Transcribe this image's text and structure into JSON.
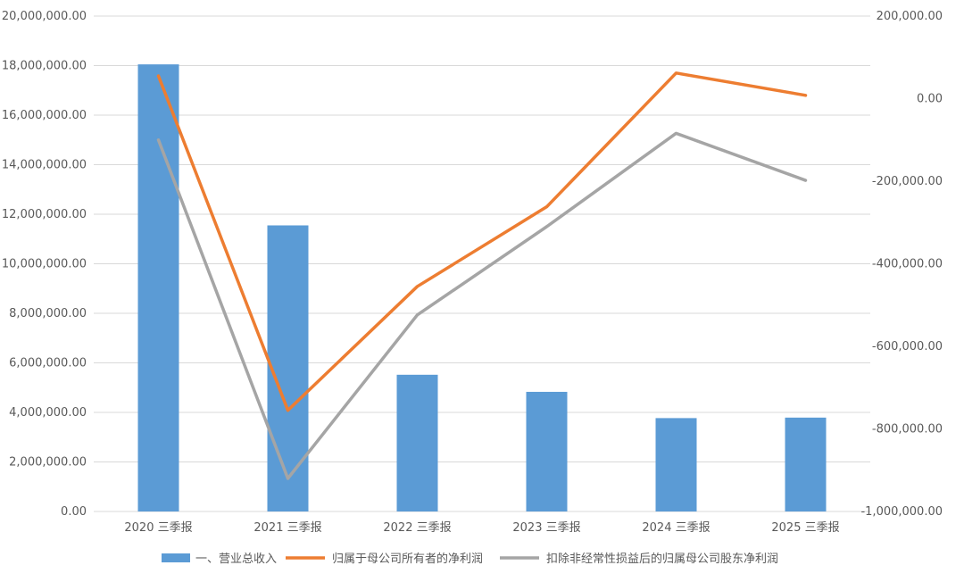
{
  "chart_data": {
    "type": "bar-line-combo",
    "title": "",
    "categories": [
      "2020 三季报",
      "2021 三季报",
      "2022 三季报",
      "2023 三季报",
      "2024 三季报",
      "2025 三季报"
    ],
    "left_axis": {
      "range": [
        0,
        20000000
      ],
      "ticks": [
        "0.00",
        "2,000,000.00",
        "4,000,000.00",
        "6,000,000.00",
        "8,000,000.00",
        "10,000,000.00",
        "12,000,000.00",
        "14,000,000.00",
        "16,000,000.00",
        "18,000,000.00",
        "20,000,000.00"
      ]
    },
    "right_axis": {
      "range": [
        -1000000,
        200000
      ],
      "ticks": [
        "-1,000,000.00",
        "-800,000.00",
        "-600,000.00",
        "-400,000.00",
        "-200,000.00",
        "0.00",
        "200,000.00"
      ]
    },
    "series": [
      {
        "name": "一、营业总收入",
        "type": "bar",
        "axis": "left",
        "color": "#5B9BD5",
        "values": [
          18050000,
          11550000,
          5520000,
          4830000,
          3770000,
          3790000
        ]
      },
      {
        "name": "归属于母公司所有者的净利润",
        "type": "line",
        "axis": "right",
        "color": "#ED7D31",
        "values": [
          55000,
          -755000,
          -455000,
          -262000,
          62000,
          8000
        ]
      },
      {
        "name": "扣除非经常性损益后的归属母公司股东净利润",
        "type": "line",
        "axis": "right",
        "color": "#A5A5A5",
        "values": [
          -100000,
          -920000,
          -524000,
          -310000,
          -84000,
          -198000
        ]
      }
    ],
    "grid": true,
    "legend_position": "bottom"
  }
}
